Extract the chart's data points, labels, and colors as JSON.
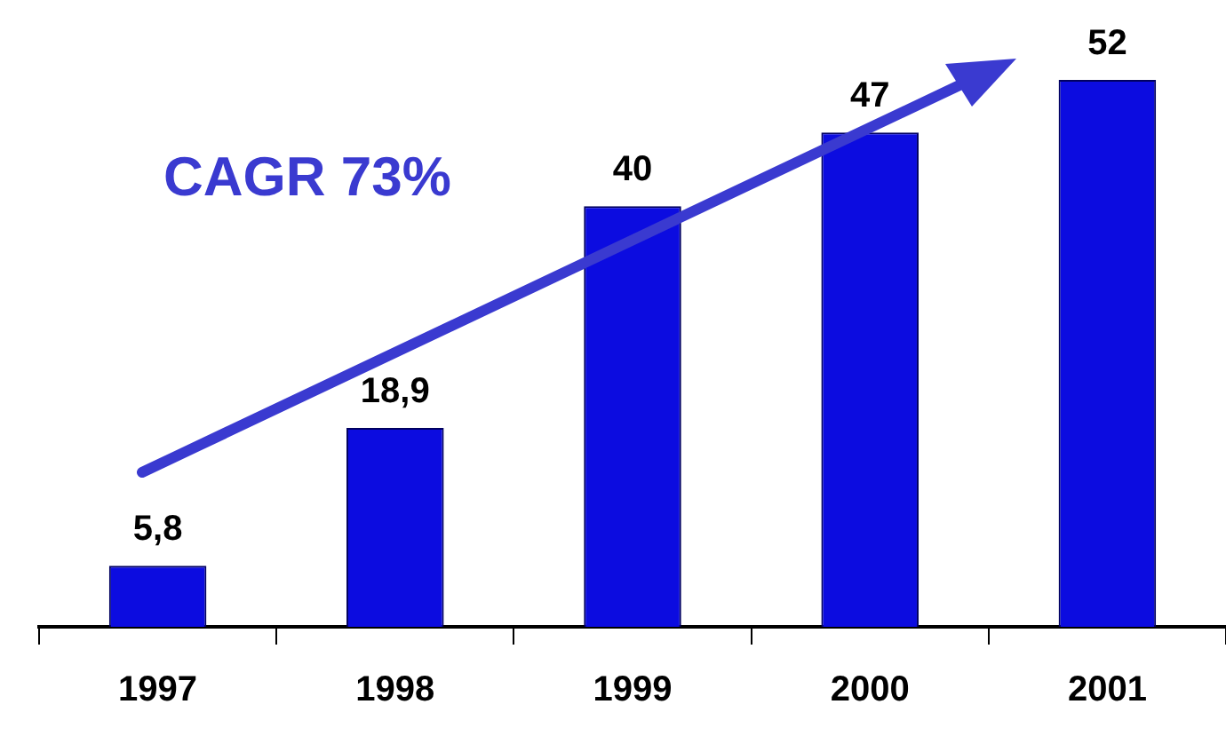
{
  "chart_data": {
    "type": "bar",
    "categories": [
      "1997",
      "1998",
      "1999",
      "2000",
      "2001"
    ],
    "values": [
      5.8,
      18.9,
      40,
      47,
      52
    ],
    "value_labels": [
      "5,8",
      "18,9",
      "40",
      "47",
      "52"
    ],
    "color": "#0c0ce0",
    "annotations": [
      "CAGR 73%"
    ],
    "grid": false,
    "legend": false
  }
}
